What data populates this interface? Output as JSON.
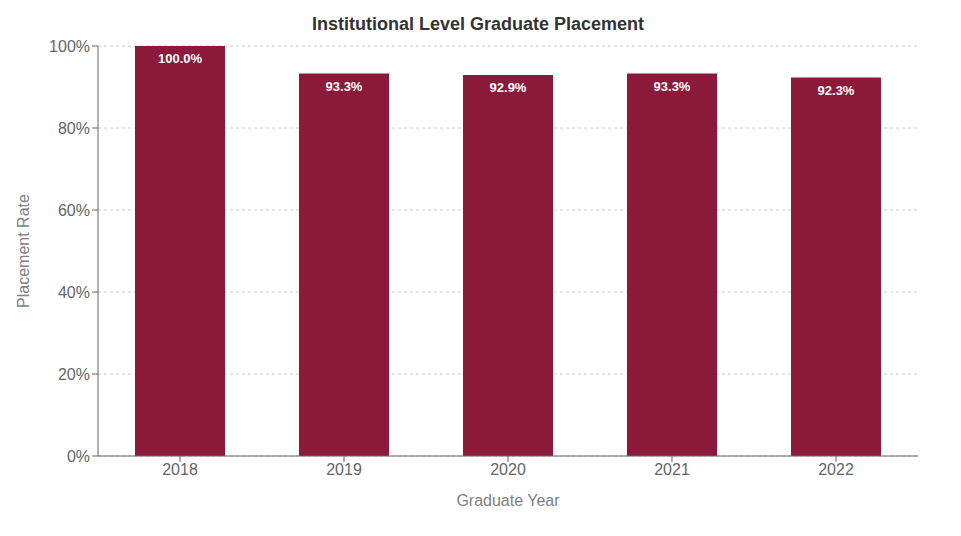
{
  "chart_data": {
    "type": "bar",
    "title": "Institutional Level Graduate Placement",
    "x_label": "Graduate Year",
    "y_label": "Placement Rate",
    "categories": [
      "2018",
      "2019",
      "2020",
      "2021",
      "2022"
    ],
    "values": [
      100.0,
      93.3,
      92.9,
      93.3,
      92.3
    ],
    "value_labels": [
      "100.0%",
      "93.3%",
      "92.9%",
      "93.3%",
      "92.3%"
    ],
    "data_labels": true,
    "color": "#8B1A3A",
    "ylim": [
      0,
      100
    ],
    "yticks": [
      {
        "value": 0,
        "label": "0%"
      },
      {
        "value": 20,
        "label": "20%"
      },
      {
        "value": 40,
        "label": "40%"
      },
      {
        "value": 60,
        "label": "60%"
      },
      {
        "value": 80,
        "label": "80%"
      },
      {
        "value": 100,
        "label": "100%"
      }
    ],
    "grid": true
  }
}
